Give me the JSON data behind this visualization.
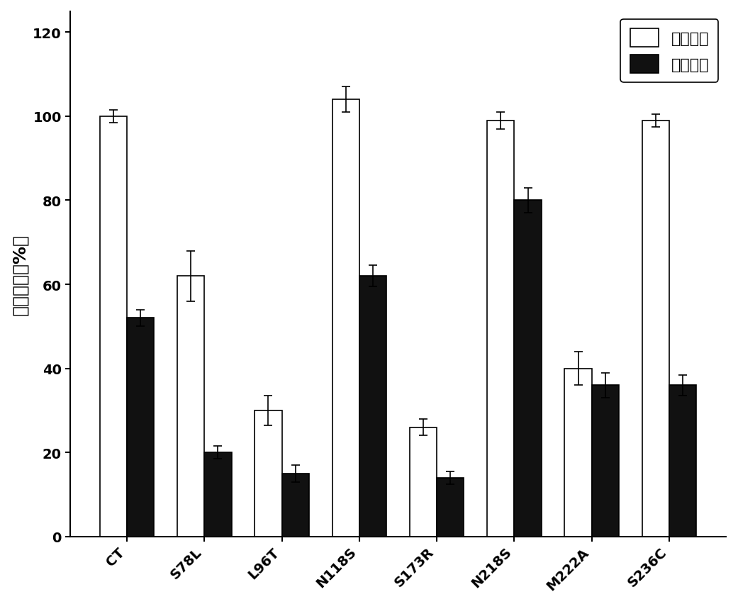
{
  "categories": [
    "CT",
    "S78L",
    "L96T",
    "N118S",
    "S173R",
    "N218S",
    "M222A",
    "S236C"
  ],
  "initial_activity": [
    100,
    62,
    30,
    104,
    26,
    99,
    40,
    99
  ],
  "residual_activity": [
    52,
    20,
    15,
    62,
    14,
    80,
    36,
    36
  ],
  "initial_errors": [
    1.5,
    6,
    3.5,
    3,
    2,
    2,
    4,
    1.5
  ],
  "residual_errors": [
    2,
    1.5,
    2,
    2.5,
    1.5,
    3,
    3,
    2.5
  ],
  "bar_width": 0.35,
  "ylim": [
    0,
    125
  ],
  "yticks": [
    0,
    20,
    40,
    60,
    80,
    100,
    120
  ],
  "ylabel": "相对酶活（%）",
  "legend_initial": "初始酶活",
  "legend_residual": "剩余酶活",
  "color_initial": "#ffffff",
  "color_residual": "#111111",
  "edge_color": "#000000",
  "background_color": "#ffffff",
  "legend_fontsize": 16,
  "axis_fontsize": 18,
  "tick_fontsize": 14
}
